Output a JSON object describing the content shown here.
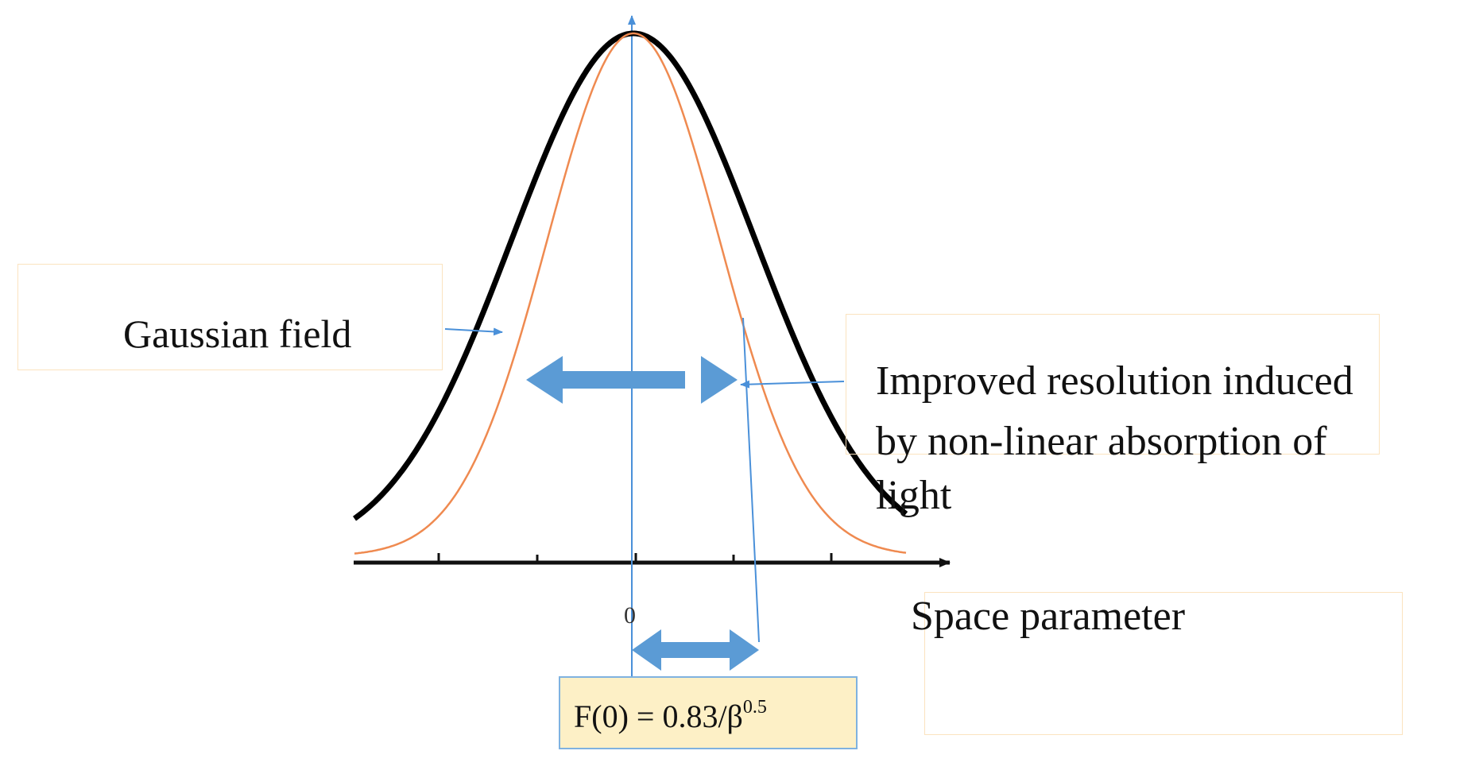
{
  "labels": {
    "gaussian_field": "Gaussian field",
    "improved_resolution_line1": "Improved resolution induced",
    "improved_resolution_line2": "by non-linear absorption of",
    "improved_resolution_line3": "light",
    "space_parameter": "Space parameter",
    "zero_tick": "0",
    "formula_prefix": "F(0) = 0.83/β",
    "formula_exponent": "0.5"
  },
  "colors": {
    "gaussian_curve": "#000000",
    "nonlinear_curve": "#ef8a50",
    "annotation_blue": "#5b9bd5",
    "thin_blue": "#4a90d9",
    "label_box_border": "#fbe3bf",
    "formula_box_fill": "#fdf0c6",
    "formula_box_border": "#7fb2e0"
  },
  "curves": [
    {
      "kind": "gaussian",
      "amplitude": 1.0,
      "sigma": 1.0
    },
    {
      "kind": "nonlinear_absorption",
      "amplitude": 1.0,
      "sigma": 0.707
    }
  ]
}
